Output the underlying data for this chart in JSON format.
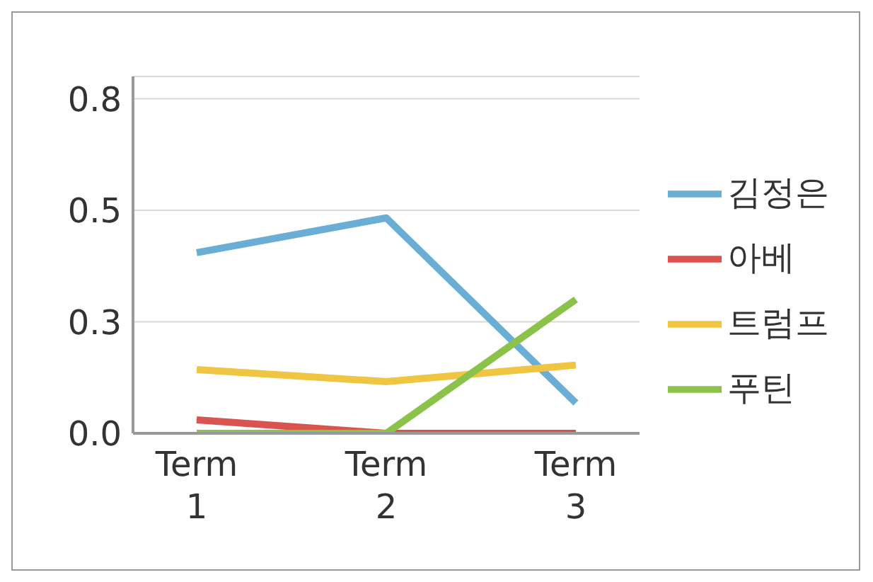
{
  "chart_data": {
    "type": "line",
    "categories": [
      "Term 1",
      "Term 2",
      "Term 3"
    ],
    "series": [
      {
        "name": "김정은",
        "color": "#6aaed6",
        "values": [
          0.405,
          0.483,
          0.068
        ]
      },
      {
        "name": "아베",
        "color": "#d9534f",
        "values": [
          0.03,
          0.0,
          0.0
        ]
      },
      {
        "name": "트럼프",
        "color": "#f0c542",
        "values": [
          0.143,
          0.116,
          0.153
        ]
      },
      {
        "name": "푸틴",
        "color": "#8bc34a",
        "values": [
          0.0,
          0.0,
          0.3
        ]
      }
    ],
    "ylim": [
      0,
      0.8
    ],
    "yticks": [
      {
        "value": 0,
        "label": "0.0"
      },
      {
        "value": 0.25,
        "label": "0.3"
      },
      {
        "value": 0.5,
        "label": "0.5"
      },
      {
        "value": 0.75,
        "label": "0.8"
      }
    ],
    "grid": "y",
    "legend": "right",
    "marker": "none",
    "line_style": "solid"
  }
}
